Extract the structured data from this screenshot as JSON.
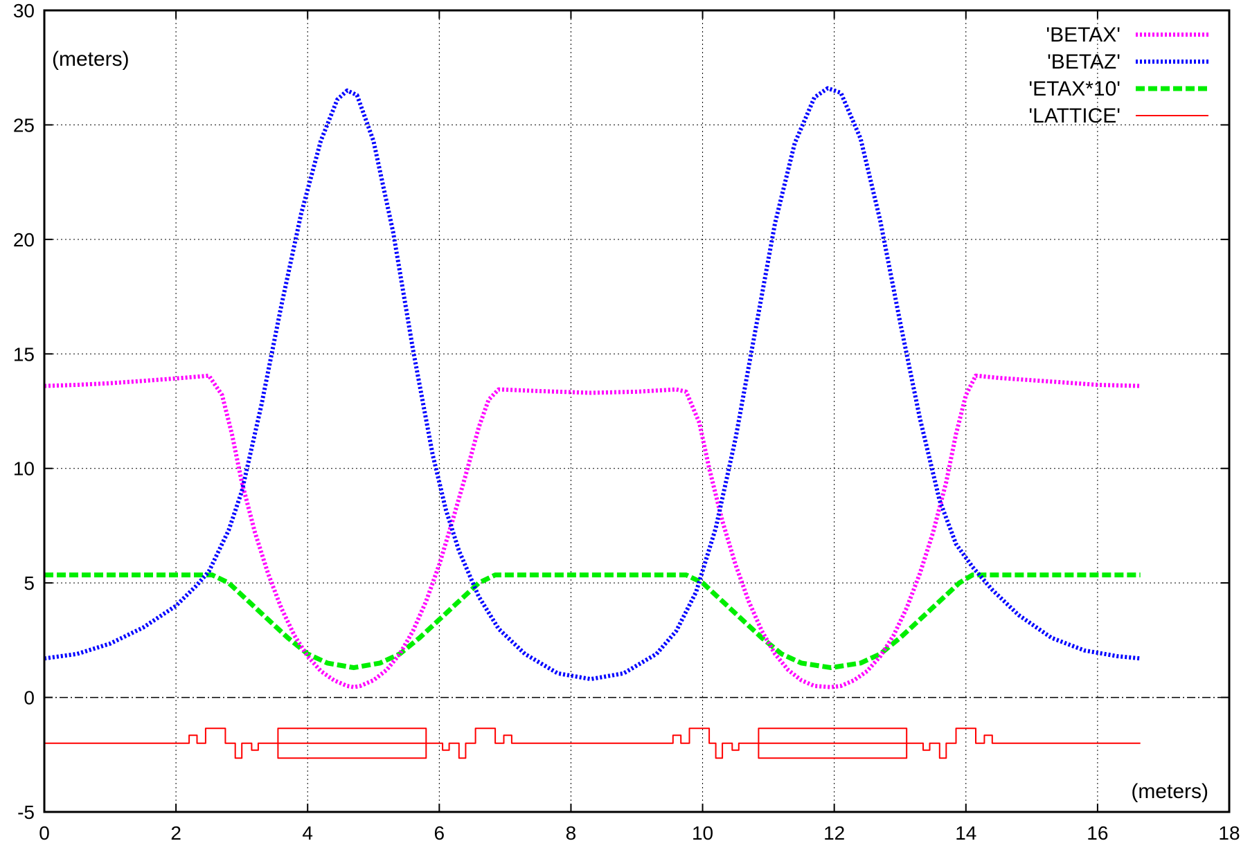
{
  "chart_data": {
    "type": "line",
    "xlabel": "(meters)",
    "ylabel": "(meters)",
    "xlim": [
      0,
      18
    ],
    "ylim": [
      -5,
      30
    ],
    "xticks": [
      0,
      2,
      4,
      6,
      8,
      10,
      12,
      14,
      16,
      18
    ],
    "yticks": [
      -5,
      0,
      5,
      10,
      15,
      20,
      25,
      30
    ],
    "grid": true,
    "legend_position": "top-right",
    "series": [
      {
        "name": "'BETAX'",
        "color": "#ff00ff",
        "style": "dotted",
        "points": [
          [
            0,
            13.6
          ],
          [
            0.5,
            13.65
          ],
          [
            1.0,
            13.72
          ],
          [
            1.5,
            13.82
          ],
          [
            2.0,
            13.93
          ],
          [
            2.3,
            14.0
          ],
          [
            2.5,
            14.05
          ],
          [
            2.7,
            13.2
          ],
          [
            2.85,
            11.5
          ],
          [
            3.0,
            9.4
          ],
          [
            3.2,
            7.2
          ],
          [
            3.4,
            5.4
          ],
          [
            3.6,
            3.9
          ],
          [
            3.8,
            2.7
          ],
          [
            4.0,
            1.8
          ],
          [
            4.2,
            1.15
          ],
          [
            4.4,
            0.75
          ],
          [
            4.6,
            0.5
          ],
          [
            4.7,
            0.45
          ],
          [
            4.8,
            0.5
          ],
          [
            5.0,
            0.75
          ],
          [
            5.2,
            1.2
          ],
          [
            5.4,
            1.9
          ],
          [
            5.6,
            2.9
          ],
          [
            5.8,
            4.2
          ],
          [
            6.0,
            5.8
          ],
          [
            6.2,
            7.7
          ],
          [
            6.4,
            9.7
          ],
          [
            6.6,
            11.8
          ],
          [
            6.75,
            13.0
          ],
          [
            6.9,
            13.45
          ],
          [
            7.5,
            13.38
          ],
          [
            8.3,
            13.3
          ],
          [
            9.0,
            13.35
          ],
          [
            9.6,
            13.45
          ],
          [
            9.75,
            13.35
          ],
          [
            9.95,
            12.0
          ],
          [
            10.1,
            10.0
          ],
          [
            10.3,
            7.7
          ],
          [
            10.5,
            5.8
          ],
          [
            10.7,
            4.2
          ],
          [
            10.9,
            2.9
          ],
          [
            11.1,
            1.9
          ],
          [
            11.3,
            1.2
          ],
          [
            11.5,
            0.75
          ],
          [
            11.7,
            0.5
          ],
          [
            11.95,
            0.45
          ],
          [
            12.1,
            0.5
          ],
          [
            12.3,
            0.75
          ],
          [
            12.5,
            1.15
          ],
          [
            12.7,
            1.8
          ],
          [
            12.9,
            2.7
          ],
          [
            13.1,
            3.9
          ],
          [
            13.3,
            5.4
          ],
          [
            13.5,
            7.2
          ],
          [
            13.7,
            9.4
          ],
          [
            13.85,
            11.5
          ],
          [
            14.0,
            13.2
          ],
          [
            14.15,
            14.05
          ],
          [
            14.5,
            13.95
          ],
          [
            15.0,
            13.85
          ],
          [
            15.5,
            13.75
          ],
          [
            16.0,
            13.65
          ],
          [
            16.65,
            13.6
          ]
        ]
      },
      {
        "name": "'BETAZ'",
        "color": "#0000ff",
        "style": "dotted",
        "points": [
          [
            0,
            1.7
          ],
          [
            0.5,
            1.9
          ],
          [
            1.0,
            2.35
          ],
          [
            1.5,
            3.05
          ],
          [
            2.0,
            4.0
          ],
          [
            2.3,
            4.85
          ],
          [
            2.5,
            5.5
          ],
          [
            2.8,
            7.3
          ],
          [
            3.0,
            9.0
          ],
          [
            3.3,
            12.8
          ],
          [
            3.6,
            17.1
          ],
          [
            3.9,
            21.1
          ],
          [
            4.2,
            24.3
          ],
          [
            4.45,
            26.1
          ],
          [
            4.6,
            26.5
          ],
          [
            4.75,
            26.3
          ],
          [
            5.0,
            24.3
          ],
          [
            5.3,
            20.3
          ],
          [
            5.6,
            15.2
          ],
          [
            5.9,
            10.6
          ],
          [
            6.1,
            8.2
          ],
          [
            6.3,
            6.4
          ],
          [
            6.6,
            4.4
          ],
          [
            6.9,
            3.0
          ],
          [
            7.3,
            1.9
          ],
          [
            7.8,
            1.05
          ],
          [
            8.3,
            0.8
          ],
          [
            8.8,
            1.05
          ],
          [
            9.3,
            1.9
          ],
          [
            9.6,
            2.9
          ],
          [
            9.9,
            4.6
          ],
          [
            10.2,
            7.4
          ],
          [
            10.5,
            11.3
          ],
          [
            10.8,
            16.0
          ],
          [
            11.1,
            20.7
          ],
          [
            11.4,
            24.2
          ],
          [
            11.7,
            26.2
          ],
          [
            11.9,
            26.6
          ],
          [
            12.1,
            26.4
          ],
          [
            12.4,
            24.4
          ],
          [
            12.7,
            20.8
          ],
          [
            13.0,
            16.4
          ],
          [
            13.3,
            12.2
          ],
          [
            13.6,
            8.6
          ],
          [
            13.85,
            6.7
          ],
          [
            14.1,
            5.7
          ],
          [
            14.4,
            4.7
          ],
          [
            14.8,
            3.6
          ],
          [
            15.3,
            2.6
          ],
          [
            15.8,
            2.05
          ],
          [
            16.3,
            1.8
          ],
          [
            16.65,
            1.7
          ]
        ]
      },
      {
        "name": "'ETAX*10'",
        "color": "#00ee00",
        "style": "dashed",
        "points": [
          [
            0,
            5.35
          ],
          [
            2.55,
            5.35
          ],
          [
            2.8,
            5.0
          ],
          [
            3.1,
            4.2
          ],
          [
            3.4,
            3.4
          ],
          [
            3.7,
            2.6
          ],
          [
            4.0,
            1.9
          ],
          [
            4.3,
            1.5
          ],
          [
            4.7,
            1.3
          ],
          [
            5.1,
            1.5
          ],
          [
            5.4,
            1.9
          ],
          [
            5.7,
            2.6
          ],
          [
            6.0,
            3.4
          ],
          [
            6.3,
            4.2
          ],
          [
            6.6,
            5.0
          ],
          [
            6.85,
            5.35
          ],
          [
            9.75,
            5.35
          ],
          [
            10.0,
            5.0
          ],
          [
            10.3,
            4.2
          ],
          [
            10.6,
            3.4
          ],
          [
            10.9,
            2.6
          ],
          [
            11.2,
            1.9
          ],
          [
            11.5,
            1.5
          ],
          [
            11.95,
            1.3
          ],
          [
            12.4,
            1.5
          ],
          [
            12.7,
            1.9
          ],
          [
            13.0,
            2.6
          ],
          [
            13.3,
            3.4
          ],
          [
            13.6,
            4.2
          ],
          [
            13.9,
            5.0
          ],
          [
            14.1,
            5.35
          ],
          [
            16.65,
            5.35
          ]
        ]
      },
      {
        "name": "'LATTICE'",
        "color": "#ff0000",
        "style": "solid",
        "points": [
          [
            0,
            -2.0
          ],
          [
            2.2,
            -2.0
          ],
          [
            2.2,
            -1.65
          ],
          [
            2.32,
            -1.65
          ],
          [
            2.32,
            -2.0
          ],
          [
            2.45,
            -2.0
          ],
          [
            2.45,
            -1.35
          ],
          [
            2.75,
            -1.35
          ],
          [
            2.75,
            -2.0
          ],
          [
            2.9,
            -2.0
          ],
          [
            2.9,
            -2.65
          ],
          [
            3.0,
            -2.65
          ],
          [
            3.0,
            -2.0
          ],
          [
            3.15,
            -2.0
          ],
          [
            3.15,
            -2.3
          ],
          [
            3.25,
            -2.3
          ],
          [
            3.25,
            -2.0
          ],
          [
            3.55,
            -2.0
          ],
          [
            3.55,
            -1.35
          ],
          [
            5.8,
            -1.35
          ],
          [
            5.8,
            -2.65
          ],
          [
            3.55,
            -2.65
          ],
          [
            3.55,
            -2.0
          ],
          [
            5.8,
            -2.0
          ],
          [
            6.05,
            -2.0
          ],
          [
            6.05,
            -2.3
          ],
          [
            6.15,
            -2.3
          ],
          [
            6.15,
            -2.0
          ],
          [
            6.3,
            -2.0
          ],
          [
            6.3,
            -2.65
          ],
          [
            6.4,
            -2.65
          ],
          [
            6.4,
            -2.0
          ],
          [
            6.55,
            -2.0
          ],
          [
            6.55,
            -1.35
          ],
          [
            6.85,
            -1.35
          ],
          [
            6.85,
            -2.0
          ],
          [
            6.98,
            -2.0
          ],
          [
            6.98,
            -1.65
          ],
          [
            7.1,
            -1.65
          ],
          [
            7.1,
            -2.0
          ],
          [
            9.55,
            -2.0
          ],
          [
            9.55,
            -1.65
          ],
          [
            9.67,
            -1.65
          ],
          [
            9.67,
            -2.0
          ],
          [
            9.8,
            -2.0
          ],
          [
            9.8,
            -1.35
          ],
          [
            10.1,
            -1.35
          ],
          [
            10.1,
            -2.0
          ],
          [
            10.2,
            -2.0
          ],
          [
            10.2,
            -2.65
          ],
          [
            10.3,
            -2.65
          ],
          [
            10.3,
            -2.0
          ],
          [
            10.45,
            -2.0
          ],
          [
            10.45,
            -2.3
          ],
          [
            10.55,
            -2.3
          ],
          [
            10.55,
            -2.0
          ],
          [
            10.85,
            -2.0
          ],
          [
            10.85,
            -1.35
          ],
          [
            13.1,
            -1.35
          ],
          [
            13.1,
            -2.65
          ],
          [
            10.85,
            -2.65
          ],
          [
            10.85,
            -2.0
          ],
          [
            13.1,
            -2.0
          ],
          [
            13.35,
            -2.0
          ],
          [
            13.35,
            -2.3
          ],
          [
            13.45,
            -2.3
          ],
          [
            13.45,
            -2.0
          ],
          [
            13.6,
            -2.0
          ],
          [
            13.6,
            -2.65
          ],
          [
            13.7,
            -2.65
          ],
          [
            13.7,
            -2.0
          ],
          [
            13.85,
            -2.0
          ],
          [
            13.85,
            -1.35
          ],
          [
            14.15,
            -1.35
          ],
          [
            14.15,
            -2.0
          ],
          [
            14.28,
            -2.0
          ],
          [
            14.28,
            -1.65
          ],
          [
            14.4,
            -1.65
          ],
          [
            14.4,
            -2.0
          ],
          [
            16.65,
            -2.0
          ]
        ]
      }
    ]
  }
}
